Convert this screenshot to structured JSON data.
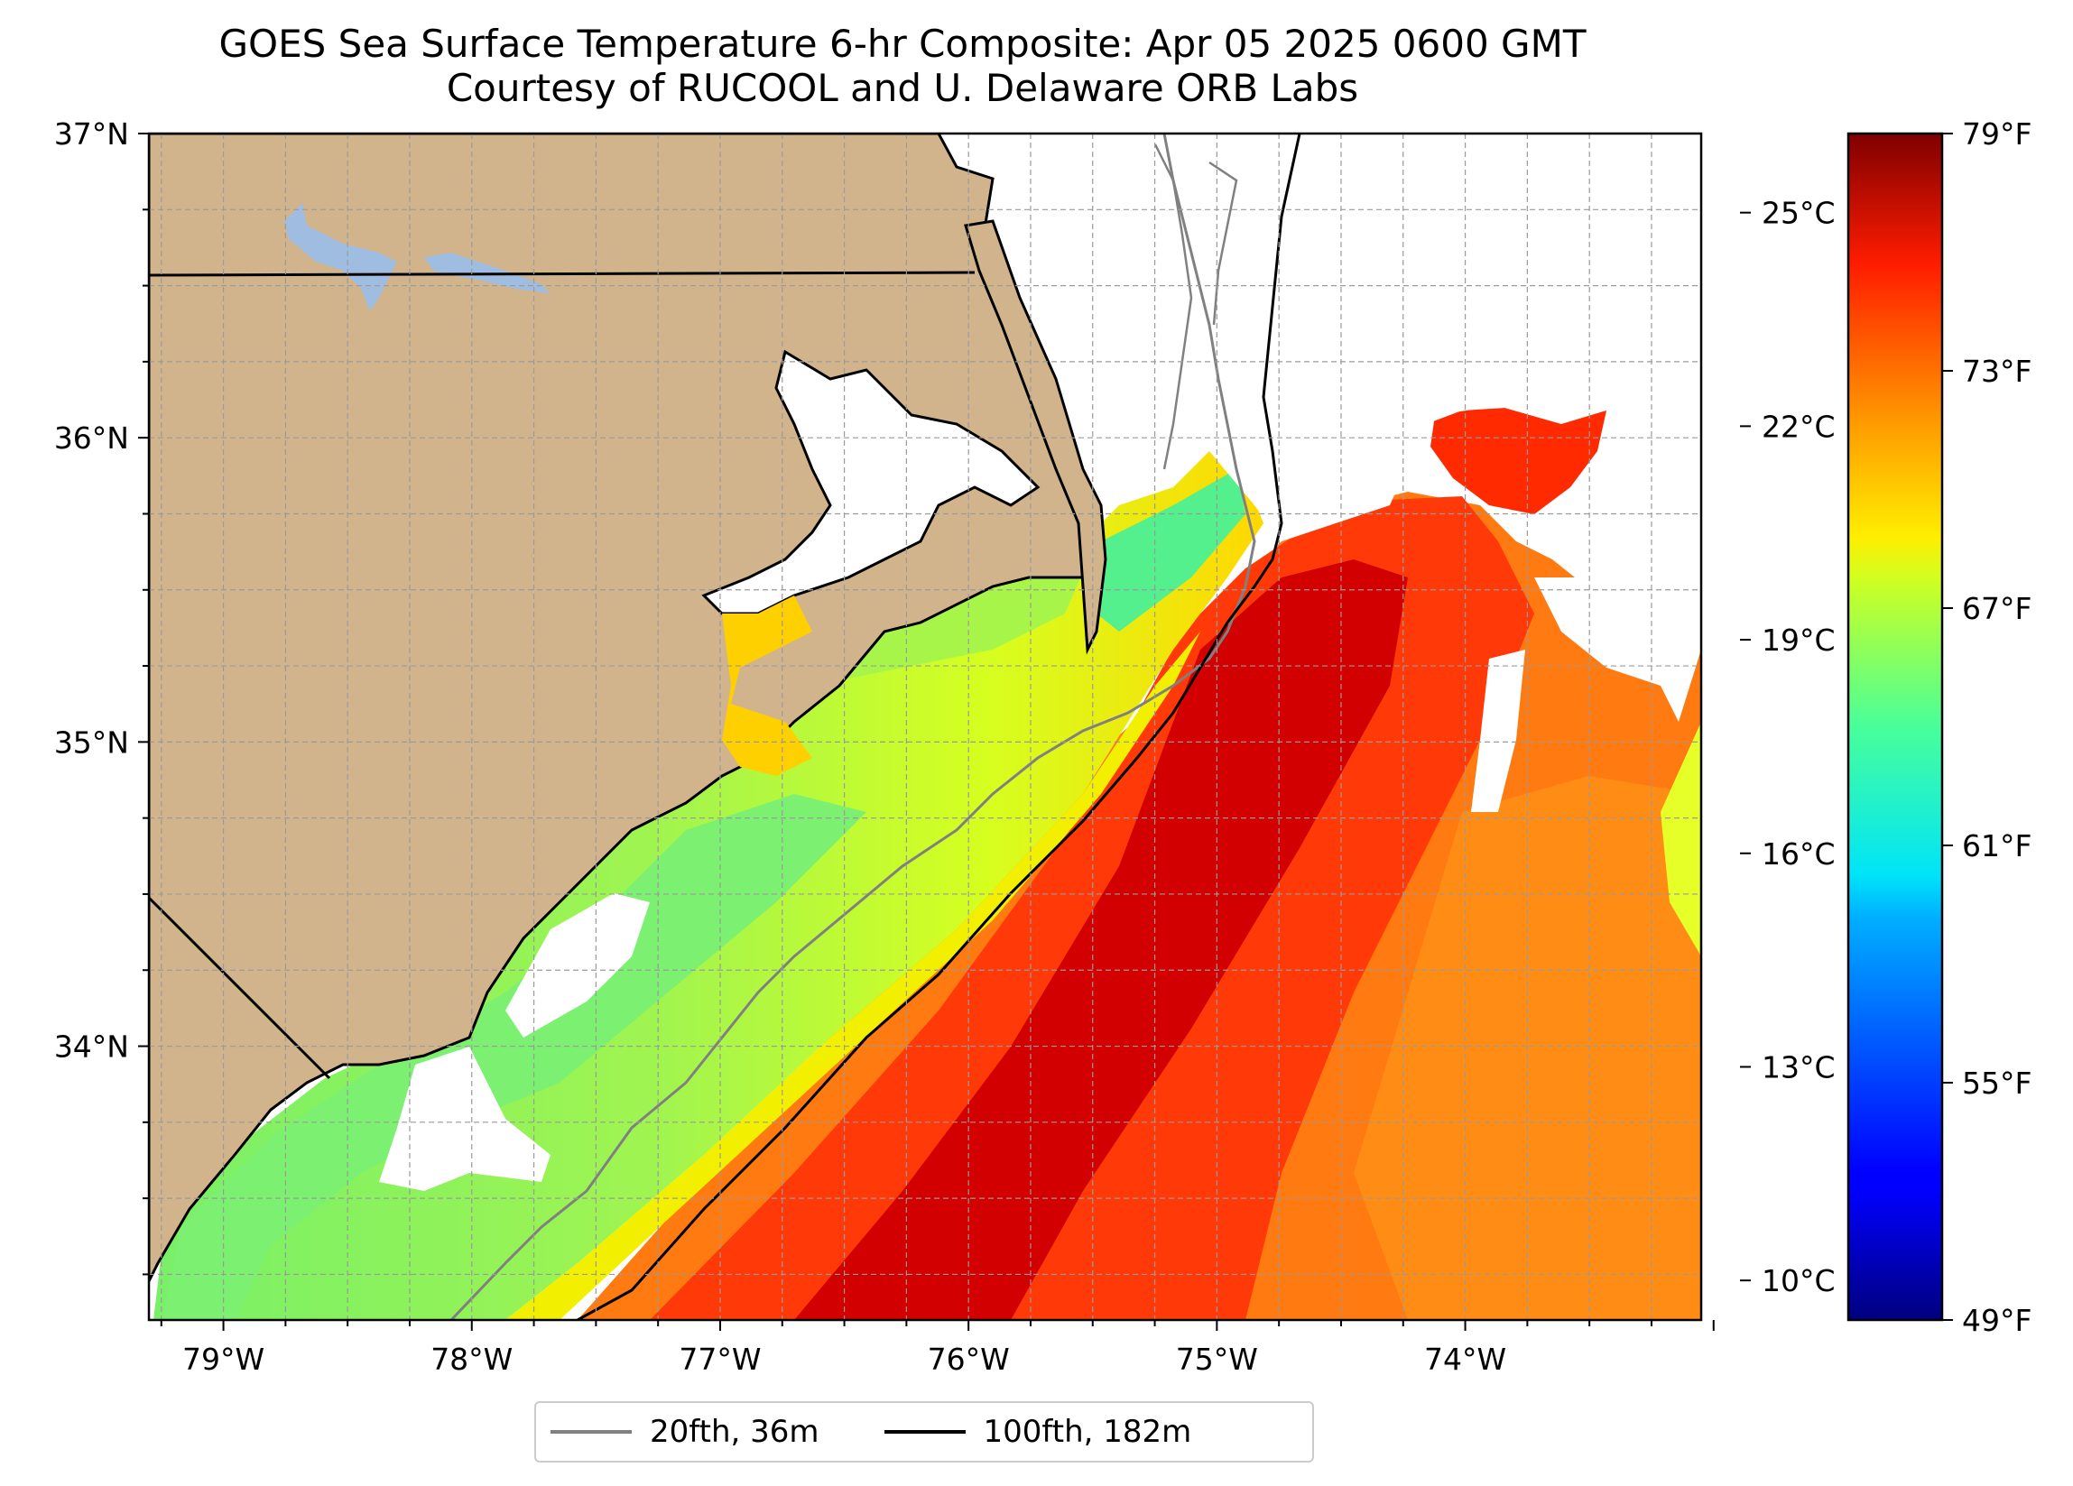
{
  "title": {
    "line1": "GOES Sea Surface Temperature 6-hr Composite: Apr 05 2025 0600 GMT",
    "line2": "Courtesy of RUCOOL and U. Delaware ORB Labs"
  },
  "map": {
    "lon_range": [
      -79.3,
      -73.05
    ],
    "lat_range": [
      33.1,
      37.0
    ],
    "x_ticks": [
      {
        "lon": -79,
        "label": "79°W"
      },
      {
        "lon": -78,
        "label": "78°W"
      },
      {
        "lon": -77,
        "label": "77°W"
      },
      {
        "lon": -76,
        "label": "76°W"
      },
      {
        "lon": -75,
        "label": "75°W"
      },
      {
        "lon": -74,
        "label": "74°W"
      }
    ],
    "y_ticks": [
      {
        "lat": 37,
        "label": "37°N"
      },
      {
        "lat": 36,
        "label": "36°N"
      },
      {
        "lat": 35,
        "label": "35°N"
      },
      {
        "lat": 34,
        "label": "34°N"
      }
    ],
    "gridlines": true,
    "colors": {
      "land": "#d2b48c",
      "lakes": "#9fbde0",
      "coastline": "#000000",
      "isobath_20fth": "#808080",
      "isobath_100fth": "#000000",
      "cloud_gap": "#ffffff"
    }
  },
  "colorbar": {
    "colormap": "jet",
    "range_f": [
      49,
      79
    ],
    "celsius_ticks": [
      {
        "value": 25,
        "label": "25°C"
      },
      {
        "value": 22,
        "label": "22°C"
      },
      {
        "value": 19,
        "label": "19°C"
      },
      {
        "value": 16,
        "label": "16°C"
      },
      {
        "value": 13,
        "label": "13°C"
      },
      {
        "value": 10,
        "label": "10°C"
      }
    ],
    "fahrenheit_ticks": [
      {
        "value": 79,
        "label": "79°F"
      },
      {
        "value": 73,
        "label": "73°F"
      },
      {
        "value": 67,
        "label": "67°F"
      },
      {
        "value": 61,
        "label": "61°F"
      },
      {
        "value": 55,
        "label": "55°F"
      },
      {
        "value": 49,
        "label": "49°F"
      }
    ]
  },
  "legend": {
    "placement": "below map",
    "entries": [
      {
        "label": "20fth, 36m",
        "color": "#808080"
      },
      {
        "label": "100fth, 182m",
        "color": "#000000"
      }
    ]
  }
}
